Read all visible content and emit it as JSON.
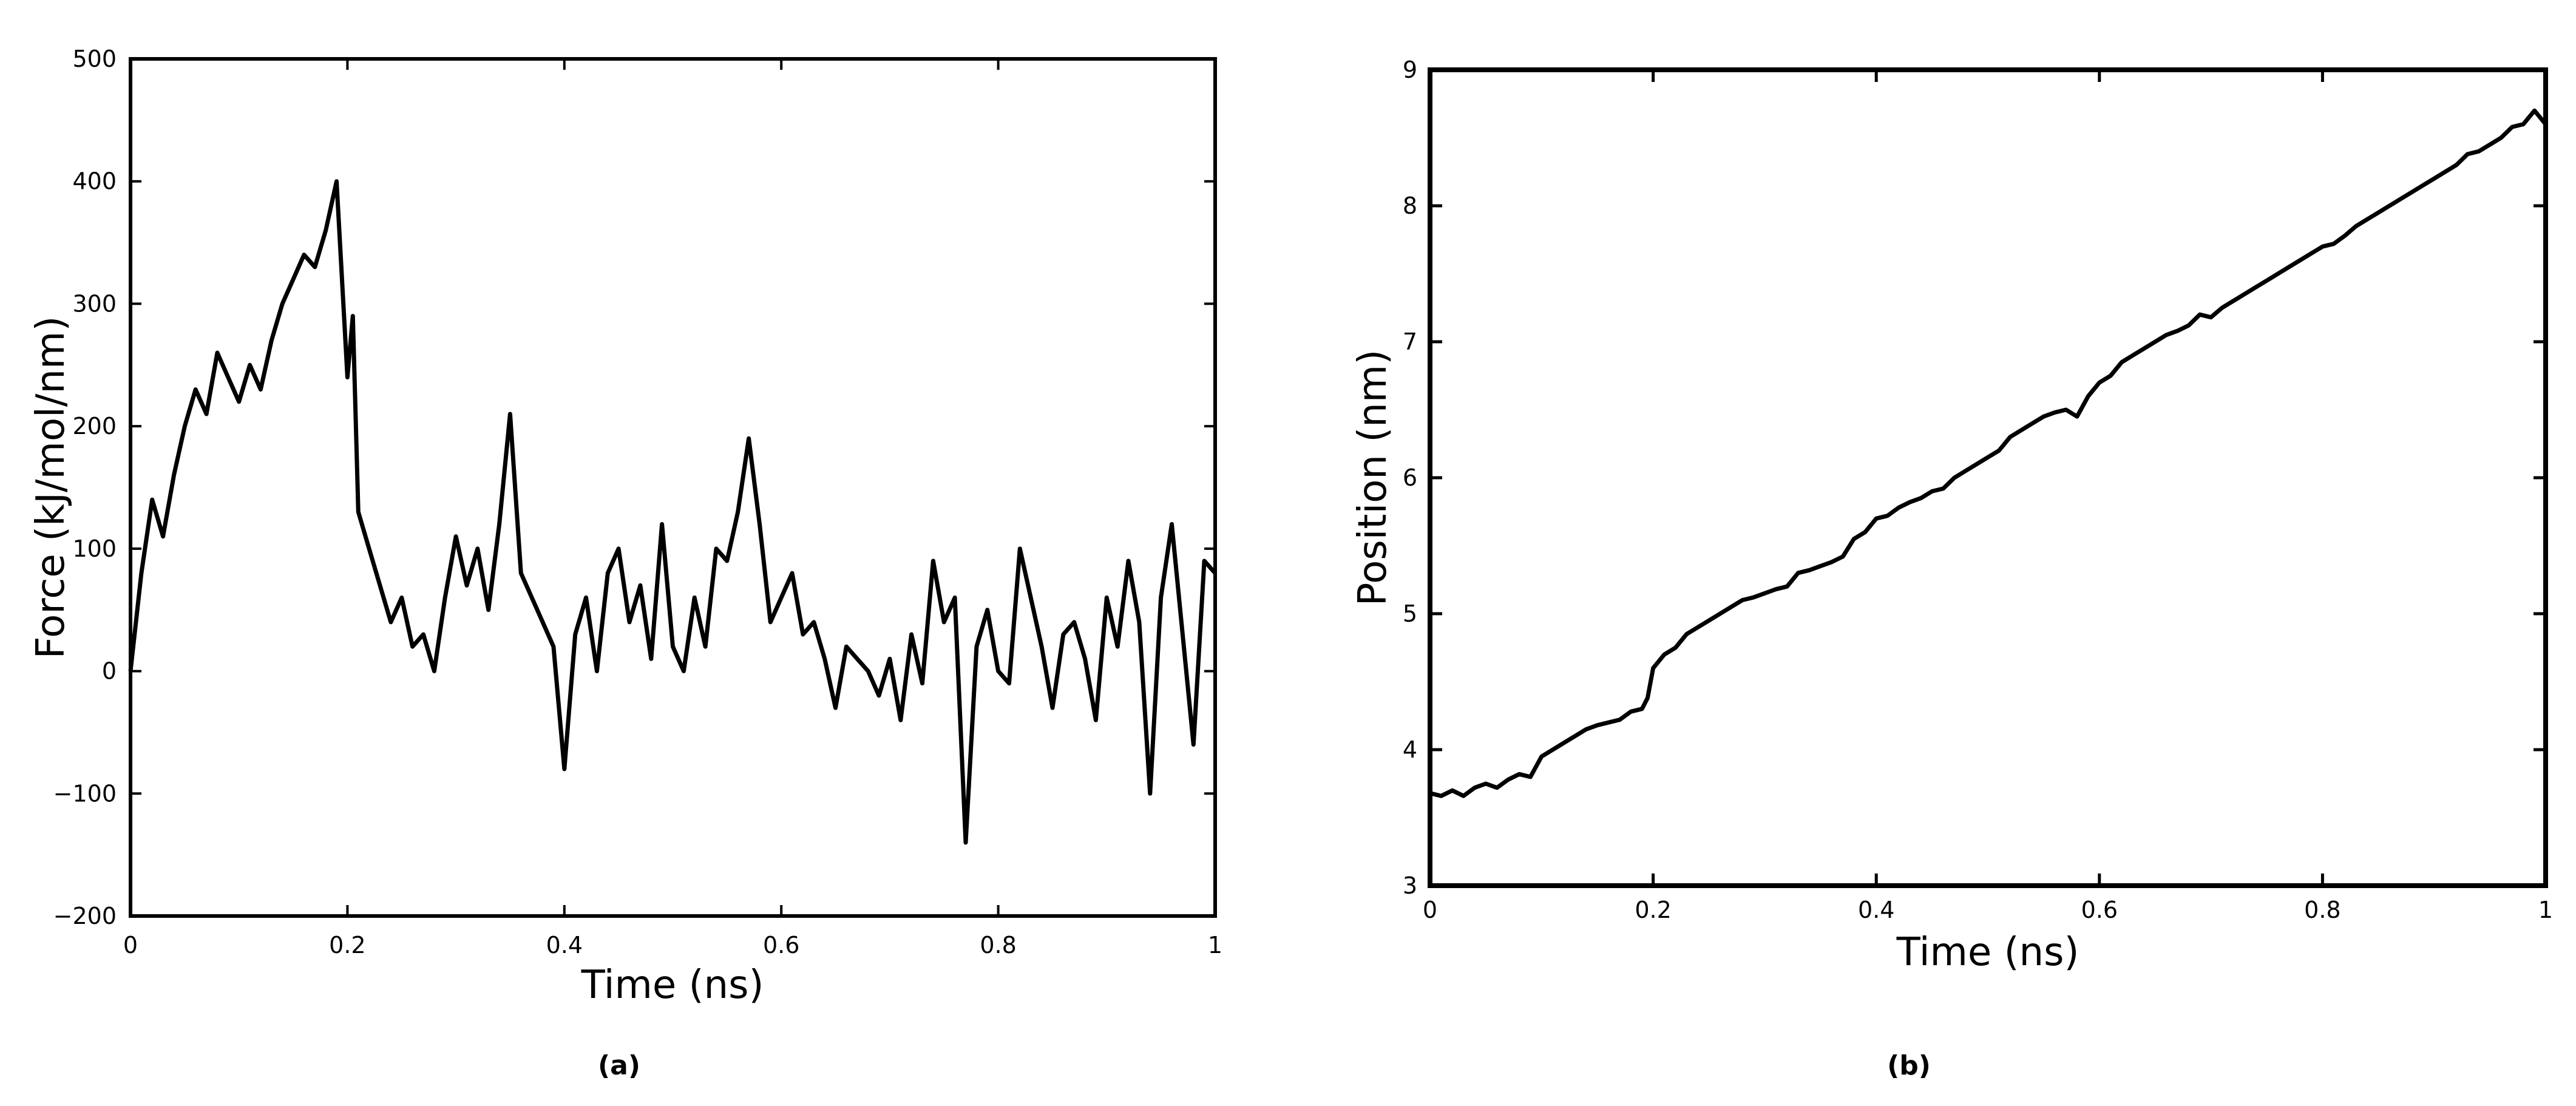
{
  "figure": {
    "panels": [
      {
        "caption": "(a)"
      },
      {
        "caption": "(b)"
      }
    ]
  },
  "chart_data": [
    {
      "type": "line",
      "xlabel": "Time (ns)",
      "ylabel": "Force (kJ/mol/nm)",
      "xlim": [
        0,
        1
      ],
      "ylim": [
        -200,
        500
      ],
      "xticks": [
        0,
        0.2,
        0.4,
        0.6,
        0.8,
        1
      ],
      "xtick_labels": [
        "0",
        "0.2",
        "0.4",
        "0.6",
        "0.8",
        "1"
      ],
      "yticks": [
        -200,
        -100,
        0,
        100,
        200,
        300,
        400,
        500
      ],
      "ytick_labels": [
        "−200",
        "−100",
        "0",
        "100",
        "200",
        "300",
        "400",
        "500"
      ],
      "grid": false,
      "line_color": "#000000",
      "series": [
        {
          "x": [
            0,
            0.01,
            0.02,
            0.03,
            0.04,
            0.05,
            0.06,
            0.07,
            0.08,
            0.09,
            0.1,
            0.11,
            0.12,
            0.13,
            0.14,
            0.15,
            0.16,
            0.17,
            0.18,
            0.19,
            0.2,
            0.205,
            0.21,
            0.22,
            0.23,
            0.24,
            0.25,
            0.26,
            0.27,
            0.28,
            0.29,
            0.3,
            0.31,
            0.32,
            0.33,
            0.34,
            0.35,
            0.36,
            0.37,
            0.38,
            0.39,
            0.4,
            0.41,
            0.42,
            0.43,
            0.44,
            0.45,
            0.46,
            0.47,
            0.48,
            0.49,
            0.5,
            0.51,
            0.52,
            0.53,
            0.54,
            0.55,
            0.56,
            0.57,
            0.58,
            0.59,
            0.6,
            0.61,
            0.62,
            0.63,
            0.64,
            0.65,
            0.66,
            0.67,
            0.68,
            0.69,
            0.7,
            0.71,
            0.72,
            0.73,
            0.74,
            0.75,
            0.76,
            0.77,
            0.78,
            0.79,
            0.8,
            0.81,
            0.82,
            0.83,
            0.84,
            0.85,
            0.86,
            0.87,
            0.88,
            0.89,
            0.9,
            0.91,
            0.92,
            0.93,
            0.94,
            0.95,
            0.96,
            0.97,
            0.98,
            0.99,
            1.0
          ],
          "y": [
            0,
            80,
            140,
            110,
            160,
            200,
            230,
            210,
            260,
            240,
            220,
            250,
            230,
            270,
            300,
            320,
            340,
            330,
            360,
            400,
            240,
            290,
            130,
            100,
            70,
            40,
            60,
            20,
            30,
            0,
            60,
            110,
            70,
            100,
            50,
            120,
            210,
            80,
            60,
            40,
            20,
            -80,
            30,
            60,
            0,
            80,
            100,
            40,
            70,
            10,
            120,
            20,
            0,
            60,
            20,
            100,
            90,
            130,
            190,
            120,
            40,
            60,
            80,
            30,
            40,
            10,
            -30,
            20,
            10,
            0,
            -20,
            10,
            -40,
            30,
            -10,
            90,
            40,
            60,
            -140,
            20,
            50,
            0,
            -10,
            100,
            60,
            20,
            -30,
            30,
            40,
            10,
            -40,
            60,
            20,
            90,
            40,
            -100,
            60,
            120,
            30,
            -60,
            90,
            80
          ]
        }
      ]
    },
    {
      "type": "line",
      "xlabel": "Time (ns)",
      "ylabel": "Position (nm)",
      "xlim": [
        0,
        1
      ],
      "ylim": [
        3,
        9
      ],
      "xticks": [
        0,
        0.2,
        0.4,
        0.6,
        0.8,
        1
      ],
      "xtick_labels": [
        "0",
        "0.2",
        "0.4",
        "0.6",
        "0.8",
        "1"
      ],
      "yticks": [
        3,
        4,
        5,
        6,
        7,
        8,
        9
      ],
      "ytick_labels": [
        "3",
        "4",
        "5",
        "6",
        "7",
        "8",
        "9"
      ],
      "grid": false,
      "line_color": "#000000",
      "series": [
        {
          "x": [
            0,
            0.01,
            0.02,
            0.03,
            0.04,
            0.05,
            0.06,
            0.07,
            0.08,
            0.09,
            0.1,
            0.11,
            0.12,
            0.13,
            0.14,
            0.15,
            0.16,
            0.17,
            0.18,
            0.19,
            0.195,
            0.2,
            0.21,
            0.22,
            0.23,
            0.24,
            0.25,
            0.26,
            0.27,
            0.28,
            0.29,
            0.3,
            0.31,
            0.32,
            0.33,
            0.34,
            0.35,
            0.36,
            0.37,
            0.38,
            0.39,
            0.4,
            0.41,
            0.42,
            0.43,
            0.44,
            0.45,
            0.46,
            0.47,
            0.48,
            0.49,
            0.5,
            0.51,
            0.52,
            0.53,
            0.54,
            0.55,
            0.56,
            0.57,
            0.58,
            0.59,
            0.6,
            0.61,
            0.62,
            0.63,
            0.64,
            0.65,
            0.66,
            0.67,
            0.68,
            0.69,
            0.7,
            0.71,
            0.72,
            0.73,
            0.74,
            0.75,
            0.76,
            0.77,
            0.78,
            0.79,
            0.8,
            0.81,
            0.82,
            0.83,
            0.84,
            0.85,
            0.86,
            0.87,
            0.88,
            0.89,
            0.9,
            0.91,
            0.92,
            0.93,
            0.94,
            0.95,
            0.96,
            0.97,
            0.98,
            0.99,
            1.0
          ],
          "y": [
            3.68,
            3.66,
            3.7,
            3.66,
            3.72,
            3.75,
            3.72,
            3.78,
            3.82,
            3.8,
            3.95,
            4.0,
            4.05,
            4.1,
            4.15,
            4.18,
            4.2,
            4.22,
            4.28,
            4.3,
            4.38,
            4.6,
            4.7,
            4.75,
            4.85,
            4.9,
            4.95,
            5.0,
            5.05,
            5.1,
            5.12,
            5.15,
            5.18,
            5.2,
            5.3,
            5.32,
            5.35,
            5.38,
            5.42,
            5.55,
            5.6,
            5.7,
            5.72,
            5.78,
            5.82,
            5.85,
            5.9,
            5.92,
            6.0,
            6.05,
            6.1,
            6.15,
            6.2,
            6.3,
            6.35,
            6.4,
            6.45,
            6.48,
            6.5,
            6.45,
            6.6,
            6.7,
            6.75,
            6.85,
            6.9,
            6.95,
            7.0,
            7.05,
            7.08,
            7.12,
            7.2,
            7.18,
            7.25,
            7.3,
            7.35,
            7.4,
            7.45,
            7.5,
            7.55,
            7.6,
            7.65,
            7.7,
            7.72,
            7.78,
            7.85,
            7.9,
            7.95,
            8.0,
            8.05,
            8.1,
            8.15,
            8.2,
            8.25,
            8.3,
            8.38,
            8.4,
            8.45,
            8.5,
            8.58,
            8.6,
            8.7,
            8.6
          ]
        }
      ]
    }
  ]
}
